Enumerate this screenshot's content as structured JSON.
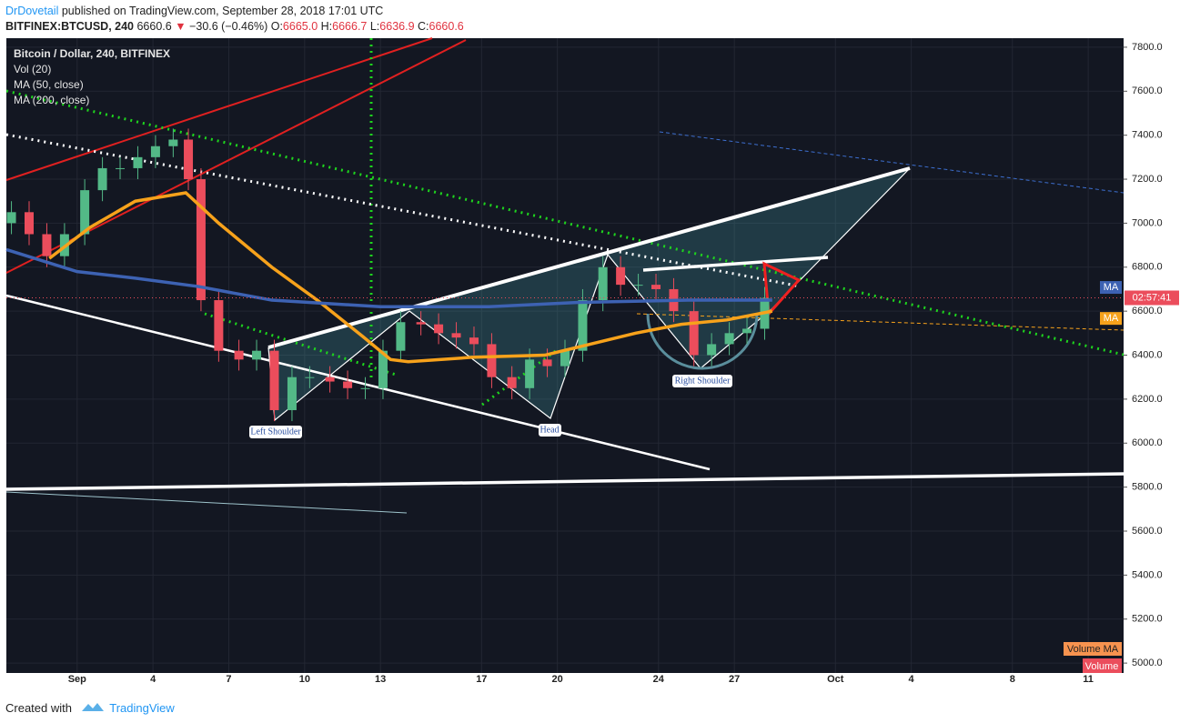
{
  "header": {
    "author": "DrDovetail",
    "published": "published on TradingView.com, September 28, 2018 17:01 UTC",
    "symbol": "BITFINEX:BTCUSD, 240",
    "price": "6660.6",
    "arrow": "▼",
    "change": "−30.6 (−0.46%)",
    "ohlc": [
      {
        "key": "O:",
        "val": "6665.0"
      },
      {
        "key": "H:",
        "val": "6666.7"
      },
      {
        "key": "L:",
        "val": "6636.9"
      },
      {
        "key": "C:",
        "val": "6660.6"
      }
    ]
  },
  "chart_data": {
    "type": "candlestick",
    "title": "Bitcoin / Dollar, 240, BITFINEX",
    "indicators": [
      "Vol (20)",
      "MA (50, close)",
      "MA (200, close)"
    ],
    "x": [
      -1.6,
      -0.9,
      -0.2,
      0.5,
      1.3,
      2.0,
      2.7,
      3.4,
      4.1,
      4.8,
      5.4,
      5.9,
      6.6,
      7.4,
      8.1,
      8.8,
      9.5,
      10.2,
      11.0,
      11.7,
      12.4,
      13.1,
      13.8,
      14.6,
      15.3,
      16.0,
      16.7,
      17.4,
      18.2,
      18.9,
      19.6,
      20.3,
      21.0,
      21.8,
      22.5,
      23.2,
      23.9,
      24.6,
      25.4,
      26.1,
      26.8,
      27.5,
      28.2
    ],
    "open": [
      7000,
      7050,
      6950,
      6850,
      6950,
      7150,
      7250,
      7250,
      7300,
      7350,
      7380,
      7200,
      6650,
      6420,
      6380,
      6420,
      6150,
      6300,
      6300,
      6280,
      6250,
      6250,
      6420,
      6550,
      6540,
      6500,
      6480,
      6450,
      6300,
      6250,
      6380,
      6350,
      6420,
      6650,
      6800,
      6720,
      6720,
      6700,
      6600,
      6400,
      6450,
      6500,
      6520
    ],
    "high": [
      7100,
      7100,
      7000,
      7000,
      7200,
      7300,
      7300,
      7350,
      7400,
      7430,
      7430,
      7250,
      6700,
      6470,
      6470,
      6470,
      6350,
      6350,
      6350,
      6330,
      6300,
      6470,
      6600,
      6600,
      6590,
      6550,
      6530,
      6500,
      6350,
      6430,
      6430,
      6470,
      6700,
      6850,
      6850,
      6770,
      6770,
      6750,
      6650,
      6500,
      6550,
      6570,
      6710
    ],
    "low": [
      6950,
      6900,
      6800,
      6800,
      6900,
      7100,
      7200,
      7200,
      7250,
      7300,
      7150,
      6600,
      6370,
      6330,
      6330,
      6100,
      6100,
      6250,
      6230,
      6200,
      6200,
      6200,
      6370,
      6490,
      6450,
      6430,
      6400,
      6250,
      6200,
      6200,
      6300,
      6300,
      6370,
      6600,
      6670,
      6670,
      6650,
      6550,
      6350,
      6350,
      6400,
      6450,
      6470
    ],
    "close": [
      7050,
      6950,
      6850,
      6950,
      7150,
      7250,
      7250,
      7300,
      7350,
      7380,
      7200,
      6650,
      6420,
      6380,
      6420,
      6150,
      6300,
      6300,
      6280,
      6250,
      6250,
      6420,
      6550,
      6540,
      6500,
      6480,
      6450,
      6300,
      6250,
      6380,
      6350,
      6420,
      6650,
      6800,
      6720,
      6720,
      6700,
      6600,
      6400,
      6450,
      6500,
      6520,
      6660
    ],
    "up_color": "#53b987",
    "down_color": "#eb4d5c",
    "lines": [
      {
        "name": "MA",
        "color": "#f7a21b",
        "x": [
          -0.1,
          1.5,
          3.3,
          5.3,
          6.6,
          8.7,
          10.5,
          12.3,
          13.4,
          14.1,
          16.6,
          19.5,
          21.3,
          23.1,
          24.9,
          26.7,
          28.5
        ],
        "values": [
          6840,
          6980,
          7100,
          7138,
          7000,
          6800,
          6650,
          6485,
          6380,
          6370,
          6390,
          6400,
          6450,
          6500,
          6540,
          6560,
          6600
        ]
      },
      {
        "name": "MA",
        "color": "#3d62b3",
        "x": [
          -1.8,
          1,
          3.3,
          5.8,
          8.7,
          13.0,
          17.3,
          20.9,
          25.2,
          28.5
        ],
        "values": [
          6880,
          6780,
          6750,
          6712,
          6650,
          6620,
          6620,
          6640,
          6650,
          6650
        ]
      }
    ],
    "last_price": 6660.6,
    "countdown": "02:57:41",
    "annotations": [
      "Left Shoulder",
      "Head",
      "Right Shoulder"
    ],
    "volume_labels": [
      "Volume MA",
      "Volume"
    ],
    "xlim": [
      -1.8,
      42.4
    ],
    "ylim": [
      4955,
      7841
    ],
    "xticks": [
      {
        "value": 1,
        "label": "Sep"
      },
      4,
      7,
      10,
      13,
      17,
      20,
      24,
      27,
      {
        "value": 31,
        "label": "Oct"
      },
      {
        "value": 34,
        "label": "4"
      },
      {
        "value": 38,
        "label": "8"
      },
      {
        "value": 41,
        "label": "11"
      }
    ],
    "yticks": [
      {
        "value": 5000,
        "label": "5000.0"
      },
      {
        "value": 5200,
        "label": "5200.0"
      },
      {
        "value": 5400,
        "label": "5400.0"
      },
      {
        "value": 5600,
        "label": "5600.0"
      },
      {
        "value": 5800,
        "label": "5800.0"
      },
      {
        "value": 6000,
        "label": "6000.0"
      },
      {
        "value": 6200,
        "label": "6200.0"
      },
      {
        "value": 6400,
        "label": "6400.0"
      },
      {
        "value": 6600,
        "label": "6600.0"
      },
      {
        "value": 6800,
        "label": "6800.0"
      },
      {
        "value": 7000,
        "label": "7000.0"
      },
      {
        "value": 7200,
        "label": "7200.0"
      },
      {
        "value": 7400,
        "label": "7400.0"
      },
      {
        "value": 7600,
        "label": "7600.0"
      },
      {
        "value": 7800,
        "label": "7800.0"
      }
    ],
    "grid": true
  },
  "footer": {
    "created": "Created with",
    "brand": "TradingView"
  }
}
